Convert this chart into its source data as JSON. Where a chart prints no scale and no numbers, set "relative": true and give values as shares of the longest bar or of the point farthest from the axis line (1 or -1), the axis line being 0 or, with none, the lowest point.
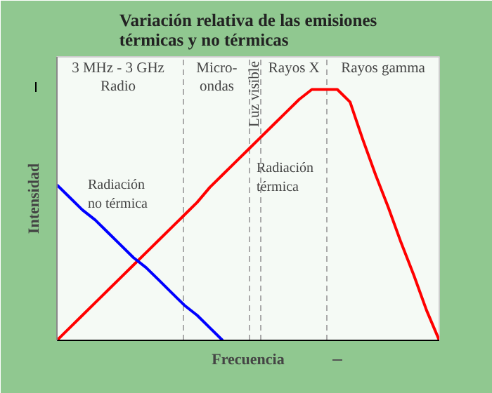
{
  "chart_data": {
    "type": "line",
    "title": "Variación relativa de las emisiones\ntérmicas y no térmicas",
    "xlabel": "Frecuencia",
    "ylabel": "Intensidad",
    "relative": true,
    "categories": [
      null,
      null,
      null,
      null,
      null,
      null,
      null,
      null,
      null,
      null,
      null,
      null,
      null,
      null,
      null,
      null,
      null,
      null,
      null,
      null,
      null,
      null,
      null,
      null,
      null,
      null,
      null,
      null,
      null,
      null,
      null
    ],
    "series": [
      {
        "name": "Radiación\ntérmica",
        "color": "#ff0000",
        "values": [
          0,
          0.05,
          0.1,
          0.15,
          0.2,
          0.25,
          0.3,
          0.35,
          0.4,
          0.45,
          0.5,
          0.55,
          0.61,
          0.66,
          0.71,
          0.76,
          0.81,
          0.86,
          0.91,
          0.96,
          1,
          1,
          1,
          0.95,
          0.8,
          0.66,
          0.53,
          0.39,
          0.26,
          0.12,
          0
        ]
      },
      {
        "name": "Radiación\nno térmica",
        "color": "#0000ff",
        "values": [
          0.62,
          0.57,
          0.52,
          0.48,
          0.43,
          0.38,
          0.33,
          0.29,
          0.24,
          0.19,
          0.14,
          0.1,
          0.05,
          0,
          null,
          null,
          null,
          null,
          null,
          null,
          null,
          null,
          null,
          null,
          null,
          null,
          null,
          null,
          null,
          null,
          null
        ]
      }
    ],
    "grid": "x",
    "annotations": [
      "3 MHz - 3 GHz\nRadio",
      "Micro-\nondas",
      "Luz visible",
      "Rayos X",
      "Rayos gamma"
    ]
  }
}
